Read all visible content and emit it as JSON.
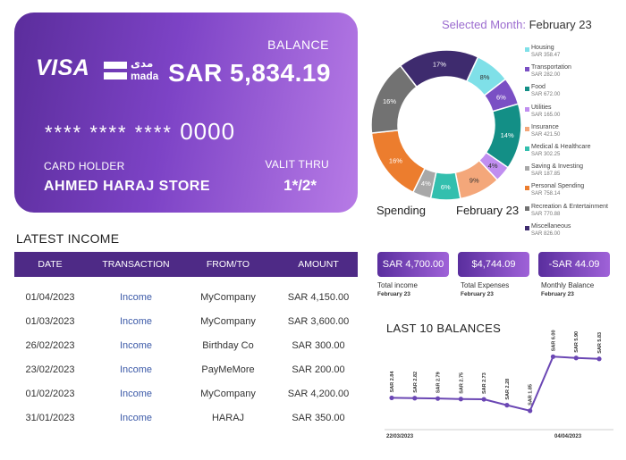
{
  "card": {
    "brand": "VISA",
    "network_ar": "مدى",
    "network_en": "mada",
    "balance_label": "BALANCE",
    "balance_value": "SAR 5,834.19",
    "number_masked": "**** **** ****",
    "number_last": "0000",
    "holder_label": "CARD HOLDER",
    "holder_name": "AHMED HARAJ STORE",
    "valid_label": "VALIT THRU",
    "valid_value": "1*/2*"
  },
  "selected_month": {
    "label": "Selected Month:",
    "value": "February 23"
  },
  "spending": {
    "label": "Spending",
    "month": "February 23"
  },
  "latest_income": {
    "title": "LATEST INCOME",
    "headers": [
      "DATE",
      "TRANSACTION",
      "FROM/TO",
      "AMOUNT"
    ],
    "rows": [
      {
        "date": "01/04/2023",
        "transaction": "Income",
        "from_to": "MyCompany",
        "amount": "SAR 4,150.00"
      },
      {
        "date": "01/03/2023",
        "transaction": "Income",
        "from_to": "MyCompany",
        "amount": "SAR 3,600.00"
      },
      {
        "date": "26/02/2023",
        "transaction": "Income",
        "from_to": "Birthday Co",
        "amount": "SAR 300.00"
      },
      {
        "date": "23/02/2023",
        "transaction": "Income",
        "from_to": "PayMeMore",
        "amount": "SAR 200.00"
      },
      {
        "date": "01/02/2023",
        "transaction": "Income",
        "from_to": "MyCompany",
        "amount": "SAR 4,200.00"
      },
      {
        "date": "31/01/2023",
        "transaction": "Income",
        "from_to": "HARAJ",
        "amount": "SAR 350.00"
      }
    ]
  },
  "summary": [
    {
      "value": "SAR 4,700.00",
      "label": "Total income",
      "month": "February 23"
    },
    {
      "value": "$4,744.09",
      "label": "Total Expenses",
      "month": "February 23"
    },
    {
      "value": "-SAR 44.09",
      "label": "Monthly Balance",
      "month": "February 23"
    }
  ],
  "balances": {
    "title": "LAST 10 BALANCES",
    "start_date": "22/03/2023",
    "end_date": "04/04/2023"
  },
  "chart_data": [
    {
      "type": "pie",
      "slices": [
        {
          "name": "Housing",
          "amount": "SAR 358.47",
          "pct_label": "8%",
          "value": 358.47,
          "color": "#7fe0e8"
        },
        {
          "name": "Transportation",
          "amount": "SAR 282.00",
          "pct_label": "6%",
          "value": 282.0,
          "color": "#7a4fc4"
        },
        {
          "name": "Food",
          "amount": "SAR 672.00",
          "pct_label": "14%",
          "value": 672.0,
          "color": "#138f86"
        },
        {
          "name": "Utilities",
          "amount": "SAR 165.00",
          "pct_label": "4%",
          "value": 165.0,
          "color": "#c08ef0"
        },
        {
          "name": "Insurance",
          "amount": "SAR 421.50",
          "pct_label": "9%",
          "value": 421.5,
          "color": "#f4a77a"
        },
        {
          "name": "Medical & Healthcare",
          "amount": "SAR 302.25",
          "pct_label": "6%",
          "value": 302.25,
          "color": "#33bfae"
        },
        {
          "name": "Saving & Investing",
          "amount": "SAR 187.85",
          "pct_label": "4%",
          "value": 187.85,
          "color": "#a8a8a8"
        },
        {
          "name": "Personal Spending",
          "amount": "SAR 758.14",
          "pct_label": "16%",
          "value": 758.14,
          "color": "#ec7d2e"
        },
        {
          "name": "Recreation & Entertainment",
          "amount": "SAR 770.88",
          "pct_label": "16%",
          "value": 770.88,
          "color": "#727272"
        },
        {
          "name": "Miscellaneous",
          "amount": "SAR 826.00",
          "pct_label": "17%",
          "value": 826.0,
          "color": "#3e2b6e"
        }
      ]
    },
    {
      "type": "line",
      "labels": [
        "SAR 2.84",
        "SAR 2.82",
        "SAR 2.79",
        "SAR 2.75",
        "SAR 2.73",
        "SAR 2.28",
        "SAR 1.85",
        "SAR 6.00",
        "SAR 5.90",
        "SAR 5.83"
      ],
      "values": [
        2.84,
        2.82,
        2.79,
        2.75,
        2.73,
        2.28,
        1.85,
        6.0,
        5.9,
        5.83
      ],
      "ylim": [
        1.5,
        6.5
      ],
      "color": "#6b47b4"
    }
  ]
}
